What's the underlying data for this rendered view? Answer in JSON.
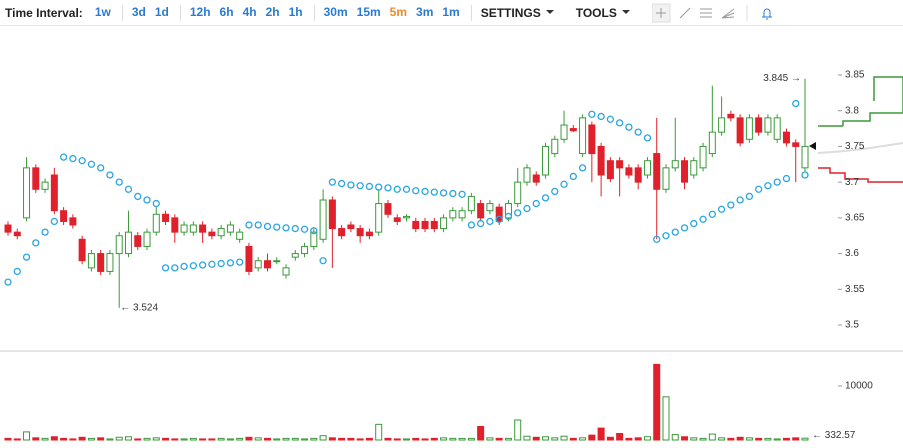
{
  "toolbar": {
    "label": "Time Interval:",
    "intervals": [
      "1w",
      "3d",
      "1d",
      "12h",
      "6h",
      "4h",
      "2h",
      "1h",
      "30m",
      "15m",
      "5m",
      "3m",
      "1m"
    ],
    "active_interval_index": 10,
    "menus": [
      "SETTINGS",
      "TOOLS"
    ]
  },
  "chart_data": {
    "type": "candlestick",
    "open": [
      3.64,
      3.63,
      3.65,
      3.72,
      3.69,
      3.71,
      3.66,
      3.65,
      3.62,
      3.58,
      3.6,
      3.575,
      3.6,
      3.6,
      3.625,
      3.61,
      3.63,
      3.655,
      3.65,
      3.63,
      3.63,
      3.64,
      3.63,
      3.625,
      3.63,
      3.62,
      3.61,
      3.58,
      3.59,
      3.589,
      3.57,
      3.595,
      3.6,
      3.61,
      3.62,
      3.675,
      3.635,
      3.64,
      3.635,
      3.63,
      3.63,
      3.67,
      3.65,
      3.65,
      3.645,
      3.645,
      3.645,
      3.635,
      3.65,
      3.65,
      3.66,
      3.67,
      3.66,
      3.665,
      3.65,
      3.67,
      3.7,
      3.71,
      3.71,
      3.74,
      3.76,
      3.775,
      3.74,
      3.78,
      3.75,
      3.73,
      3.73,
      3.72,
      3.72,
      3.71,
      3.74,
      3.69,
      3.72,
      3.73,
      3.71,
      3.72,
      3.74,
      3.77,
      3.795,
      3.79,
      3.76,
      3.79,
      3.77,
      3.76,
      3.77,
      3.755,
      3.72
    ],
    "high": [
      3.645,
      3.635,
      3.735,
      3.725,
      3.705,
      3.72,
      3.665,
      3.655,
      3.625,
      3.605,
      3.605,
      3.605,
      3.63,
      3.66,
      3.63,
      3.635,
      3.665,
      3.66,
      3.655,
      3.645,
      3.645,
      3.645,
      3.635,
      3.64,
      3.645,
      3.635,
      3.615,
      3.595,
      3.6,
      3.595,
      3.585,
      3.605,
      3.615,
      3.635,
      3.69,
      3.68,
      3.64,
      3.645,
      3.64,
      3.635,
      3.69,
      3.675,
      3.655,
      3.655,
      3.65,
      3.65,
      3.65,
      3.655,
      3.665,
      3.665,
      3.685,
      3.675,
      3.675,
      3.67,
      3.675,
      3.72,
      3.725,
      3.715,
      3.755,
      3.765,
      3.8,
      3.78,
      3.795,
      3.785,
      3.755,
      3.735,
      3.735,
      3.725,
      3.725,
      3.735,
      3.79,
      3.725,
      3.79,
      3.735,
      3.735,
      3.755,
      3.835,
      3.82,
      3.8,
      3.795,
      3.795,
      3.795,
      3.795,
      3.795,
      3.775,
      3.76,
      3.845
    ],
    "low": [
      3.625,
      3.62,
      3.645,
      3.685,
      3.685,
      3.655,
      3.64,
      3.635,
      3.585,
      3.575,
      3.57,
      3.57,
      3.524,
      3.595,
      3.605,
      3.605,
      3.625,
      3.64,
      3.615,
      3.625,
      3.625,
      3.615,
      3.62,
      3.62,
      3.625,
      3.615,
      3.57,
      3.575,
      3.575,
      3.585,
      3.565,
      3.59,
      3.595,
      3.605,
      3.615,
      3.58,
      3.62,
      3.63,
      3.615,
      3.62,
      3.625,
      3.65,
      3.64,
      3.645,
      3.63,
      3.63,
      3.63,
      3.63,
      3.645,
      3.645,
      3.655,
      3.645,
      3.655,
      3.64,
      3.645,
      3.665,
      3.695,
      3.695,
      3.705,
      3.735,
      3.755,
      3.77,
      3.735,
      3.7,
      3.68,
      3.7,
      3.68,
      3.705,
      3.69,
      3.705,
      3.62,
      3.685,
      3.715,
      3.69,
      3.705,
      3.715,
      3.735,
      3.765,
      3.785,
      3.75,
      3.755,
      3.765,
      3.765,
      3.755,
      3.75,
      3.7,
      3.715
    ],
    "close": [
      3.63,
      3.625,
      3.72,
      3.69,
      3.7,
      3.66,
      3.645,
      3.64,
      3.59,
      3.6,
      3.575,
      3.6,
      3.625,
      3.63,
      3.61,
      3.63,
      3.655,
      3.645,
      3.63,
      3.64,
      3.64,
      3.63,
      3.625,
      3.635,
      3.64,
      3.63,
      3.575,
      3.59,
      3.58,
      3.59,
      3.58,
      3.6,
      3.61,
      3.63,
      3.675,
      3.635,
      3.625,
      3.635,
      3.625,
      3.625,
      3.67,
      3.655,
      3.645,
      3.652,
      3.635,
      3.635,
      3.635,
      3.65,
      3.66,
      3.66,
      3.68,
      3.65,
      3.67,
      3.645,
      3.67,
      3.7,
      3.72,
      3.7,
      3.75,
      3.76,
      3.78,
      3.772,
      3.79,
      3.74,
      3.71,
      3.705,
      3.72,
      3.71,
      3.7,
      3.73,
      3.69,
      3.72,
      3.73,
      3.7,
      3.73,
      3.75,
      3.77,
      3.79,
      3.79,
      3.755,
      3.79,
      3.77,
      3.79,
      3.79,
      3.755,
      3.75,
      3.75
    ],
    "sar": [
      3.56,
      3.575,
      3.595,
      3.615,
      3.63,
      3.645,
      3.735,
      3.733,
      3.73,
      3.725,
      3.72,
      3.71,
      3.7,
      3.69,
      3.68,
      3.675,
      3.67,
      3.58,
      3.58,
      3.582,
      3.583,
      3.584,
      3.585,
      3.586,
      3.587,
      3.588,
      3.64,
      3.64,
      3.638,
      3.637,
      3.636,
      3.635,
      3.634,
      3.632,
      3.59,
      3.7,
      3.698,
      3.696,
      3.695,
      3.694,
      3.693,
      3.692,
      3.69,
      3.69,
      3.688,
      3.687,
      3.686,
      3.685,
      3.684,
      3.683,
      3.64,
      3.642,
      3.645,
      3.648,
      3.652,
      3.657,
      3.663,
      3.67,
      3.678,
      3.687,
      3.697,
      3.708,
      3.72,
      3.795,
      3.792,
      3.788,
      3.783,
      3.777,
      3.77,
      3.762,
      3.62,
      3.625,
      3.63,
      3.636,
      3.642,
      3.648,
      3.655,
      3.662,
      3.668,
      3.675,
      3.68,
      3.69,
      3.695,
      3.7,
      3.705,
      3.81,
      3.71
    ],
    "volume": [
      300,
      200,
      1500,
      400,
      300,
      600,
      300,
      200,
      500,
      300,
      400,
      200,
      500,
      600,
      200,
      300,
      400,
      300,
      200,
      200,
      300,
      200,
      200,
      300,
      200,
      300,
      500,
      400,
      300,
      200,
      300,
      300,
      200,
      300,
      800,
      400,
      300,
      300,
      200,
      300,
      2900,
      300,
      200,
      200,
      300,
      200,
      300,
      400,
      300,
      300,
      300,
      2500,
      400,
      300,
      300,
      3700,
      700,
      500,
      600,
      400,
      700,
      300,
      400,
      900,
      2200,
      500,
      1200,
      300,
      400,
      600,
      14000,
      8000,
      1000,
      600,
      400,
      300,
      1100,
      400,
      300,
      500,
      400,
      300,
      300,
      200,
      300,
      400,
      332.57
    ],
    "up_color": "#3a9a3a",
    "down_color": "#e0202a",
    "sar_color": "#29a5e0",
    "ylim": [
      3.465,
      3.92
    ],
    "yticks": [
      3.5,
      3.55,
      3.6,
      3.65,
      3.7,
      3.75,
      3.8,
      3.85
    ],
    "volume_ylim": [
      0,
      16300
    ],
    "volume_yticks": [
      10000
    ],
    "high_label": "3.845 →",
    "low_label": "← 3.524",
    "volume_label": "← 332.57"
  }
}
